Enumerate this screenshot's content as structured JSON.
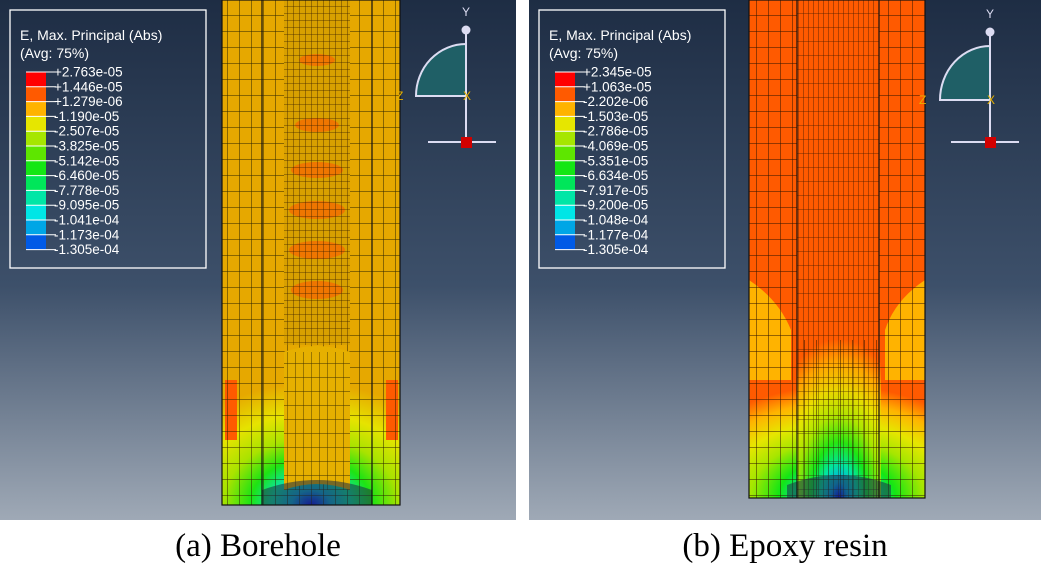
{
  "panels": [
    {
      "caption": "(a) Borehole",
      "legend": {
        "title": "E, Max. Principal (Abs)",
        "subtitle": "(Avg: 75%)",
        "values": [
          "+2.763e-05",
          "+1.446e-05",
          "+1.279e-06",
          "-1.190e-05",
          "-2.507e-05",
          "-3.825e-05",
          "-5.142e-05",
          "-6.460e-05",
          "-7.778e-05",
          "-9.095e-05",
          "-1.041e-04",
          "-1.173e-04",
          "-1.305e-04"
        ]
      },
      "triad": {
        "y": "Y",
        "z": "Z",
        "x": "X"
      }
    },
    {
      "caption": "(b) Epoxy resin",
      "legend": {
        "title": "E, Max. Principal (Abs)",
        "subtitle": "(Avg: 75%)",
        "values": [
          "+2.345e-05",
          "+1.063e-05",
          "-2.202e-06",
          "-1.503e-05",
          "-2.786e-05",
          "-4.069e-05",
          "-5.351e-05",
          "-6.634e-05",
          "-7.917e-05",
          "-9.200e-05",
          "-1.048e-04",
          "-1.177e-04",
          "-1.305e-04"
        ]
      },
      "triad": {
        "y": "Y",
        "z": "Z",
        "x": "X"
      }
    }
  ],
  "contour_colors": [
    "#ff0000",
    "#ff5a00",
    "#ffb300",
    "#e6e600",
    "#a6e600",
    "#5ee600",
    "#14e614",
    "#00e65a",
    "#00e6a6",
    "#00e6e6",
    "#00a6e6",
    "#005ae6",
    "#0000ff"
  ]
}
